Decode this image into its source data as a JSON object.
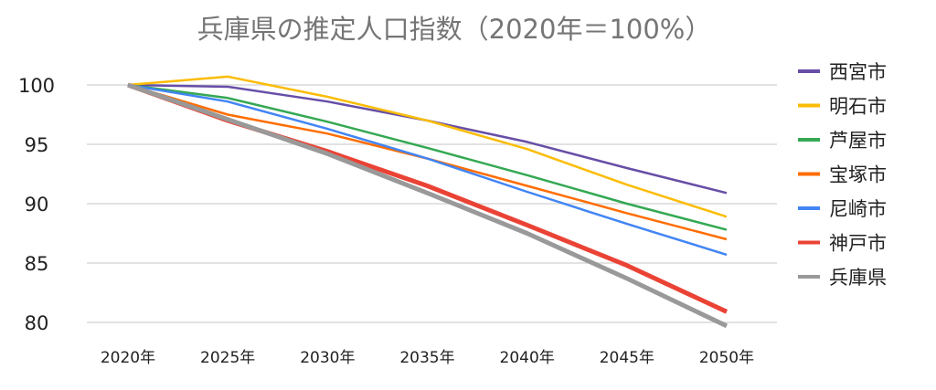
{
  "chart_data": {
    "type": "line",
    "title": "兵庫県の推定人口指数（2020年＝100%）",
    "xlabel": "",
    "ylabel": "",
    "categories": [
      "2020年",
      "2025年",
      "2030年",
      "2035年",
      "2040年",
      "2045年",
      "2050年"
    ],
    "ylim": [
      80,
      100
    ],
    "yticks": [
      100,
      95,
      90,
      85,
      80
    ],
    "grid": true,
    "legend_position": "right",
    "series": [
      {
        "name": "西宮市",
        "color": "#674ea7",
        "width": 2.5,
        "values": [
          100,
          99.85,
          98.6,
          97.0,
          95.2,
          93.0,
          90.9
        ]
      },
      {
        "name": "明石市",
        "color": "#fbbc04",
        "width": 2.5,
        "values": [
          100,
          100.7,
          99.0,
          97.0,
          94.6,
          91.6,
          88.9
        ]
      },
      {
        "name": "芦屋市",
        "color": "#34a853",
        "width": 2.5,
        "values": [
          100,
          98.9,
          96.9,
          94.7,
          92.4,
          90.0,
          87.8
        ]
      },
      {
        "name": "宝塚市",
        "color": "#ff6d01",
        "width": 2.5,
        "values": [
          100,
          97.5,
          95.9,
          93.8,
          91.5,
          89.2,
          87.0
        ]
      },
      {
        "name": "尼崎市",
        "color": "#4285f4",
        "width": 2.5,
        "values": [
          100,
          98.6,
          96.3,
          93.8,
          91.0,
          88.3,
          85.7
        ]
      },
      {
        "name": "神戸市",
        "color": "#ea4335",
        "width": 5,
        "values": [
          100,
          97.0,
          94.4,
          91.5,
          88.2,
          84.8,
          80.9
        ]
      },
      {
        "name": "兵庫県",
        "color": "#999999",
        "width": 5,
        "values": [
          100,
          97.1,
          94.2,
          90.9,
          87.5,
          83.7,
          79.7
        ]
      }
    ]
  }
}
